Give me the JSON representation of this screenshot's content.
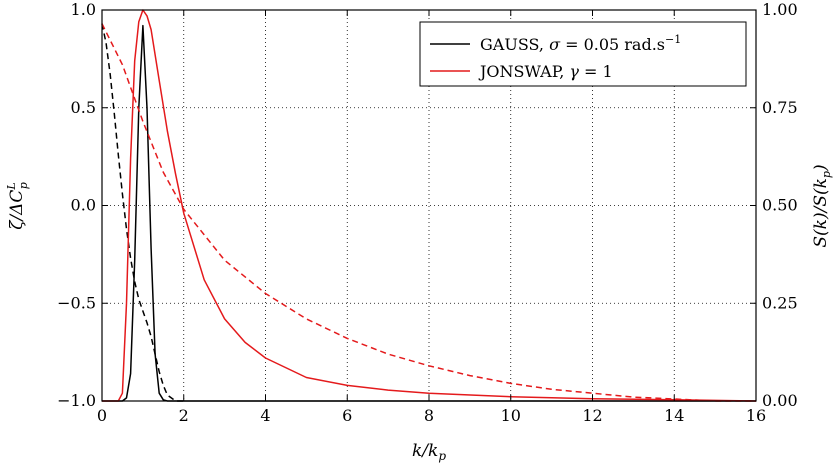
{
  "chart_data": {
    "type": "line",
    "x_axis": {
      "label": "k/k_p",
      "ticks": [
        0,
        2,
        4,
        6,
        8,
        10,
        12,
        14,
        16
      ],
      "tick_labels": [
        "0",
        "2",
        "4",
        "6",
        "8",
        "10",
        "12",
        "14",
        "16"
      ],
      "lim": [
        0,
        16
      ]
    },
    "left_axis": {
      "label": "ζ/ΔC_p^L",
      "ticks": [
        -1.0,
        -0.5,
        0.0,
        0.5,
        1.0
      ],
      "tick_labels": [
        "−1.0",
        "−0.5",
        "0.0",
        "0.5",
        "1.0"
      ],
      "lim": [
        -1.0,
        1.0
      ]
    },
    "right_axis": {
      "label": "S(k)/S(k_p)",
      "ticks": [
        0.0,
        0.25,
        0.5,
        0.75,
        1.0
      ],
      "tick_labels": [
        "0.00",
        "0.25",
        "0.50",
        "0.75",
        "1.00"
      ],
      "lim": [
        0.0,
        1.0
      ]
    },
    "grid": true,
    "legend_placement": "top-right",
    "series": [
      {
        "name": "GAUSS, σ = 0.05 rad.s⁻¹",
        "name_parts": {
          "a": "GAUSS, ",
          "sym": "σ",
          "b": " = 0.05 rad.s",
          "sup": "−1"
        },
        "axis": "right",
        "style": "solid",
        "color": "#000000",
        "x": [
          0,
          0.5,
          0.6,
          0.7,
          0.8,
          0.9,
          1.0,
          1.1,
          1.2,
          1.3,
          1.4,
          1.5,
          1.6,
          2.0,
          16
        ],
        "y": [
          0,
          0,
          0.008,
          0.07,
          0.36,
          0.75,
          0.96,
          0.75,
          0.39,
          0.12,
          0.02,
          0.003,
          0,
          0,
          0
        ]
      },
      {
        "name": "",
        "axis": "left",
        "style": "dashed",
        "color": "#000000",
        "x": [
          0,
          0.1,
          0.2,
          0.3,
          0.4,
          0.5,
          0.6,
          0.7,
          0.8,
          0.9,
          1.0,
          1.1,
          1.2,
          1.3,
          1.4,
          1.5,
          1.6,
          1.8,
          2.0
        ],
        "y": [
          0.93,
          0.83,
          0.67,
          0.47,
          0.26,
          0.06,
          -0.12,
          -0.27,
          -0.39,
          -0.48,
          -0.54,
          -0.6,
          -0.67,
          -0.76,
          -0.85,
          -0.92,
          -0.97,
          -1.0,
          -1.0
        ]
      },
      {
        "name": "JONSWAP, γ = 1",
        "name_parts": {
          "a": "JONSWAP, ",
          "sym": "γ",
          "b": " = 1",
          "sup": ""
        },
        "axis": "right",
        "style": "solid",
        "color": "#e41a1c",
        "x": [
          0,
          0.4,
          0.5,
          0.6,
          0.7,
          0.8,
          0.9,
          1.0,
          1.1,
          1.2,
          1.4,
          1.6,
          1.8,
          2.0,
          2.5,
          3.0,
          3.5,
          4.0,
          5.0,
          6.0,
          7.0,
          8.0,
          10.0,
          12.0,
          14.0,
          16.0
        ],
        "y": [
          0,
          0.0,
          0.02,
          0.25,
          0.62,
          0.87,
          0.97,
          1.0,
          0.985,
          0.95,
          0.82,
          0.69,
          0.58,
          0.48,
          0.31,
          0.21,
          0.15,
          0.11,
          0.06,
          0.04,
          0.028,
          0.02,
          0.011,
          0.006,
          0.003,
          0.0
        ]
      },
      {
        "name": "",
        "axis": "left",
        "style": "dashed",
        "color": "#e41a1c",
        "x": [
          0,
          0.5,
          1.0,
          1.5,
          2.0,
          3.0,
          4.0,
          5.0,
          6.0,
          7.0,
          8.0,
          9.0,
          10.0,
          11.0,
          12.0,
          13.0,
          14.0,
          15.0,
          16.0
        ],
        "y": [
          0.93,
          0.72,
          0.43,
          0.17,
          -0.02,
          -0.28,
          -0.45,
          -0.58,
          -0.68,
          -0.76,
          -0.82,
          -0.87,
          -0.91,
          -0.94,
          -0.96,
          -0.98,
          -0.99,
          -1.0,
          -1.0
        ]
      }
    ]
  }
}
